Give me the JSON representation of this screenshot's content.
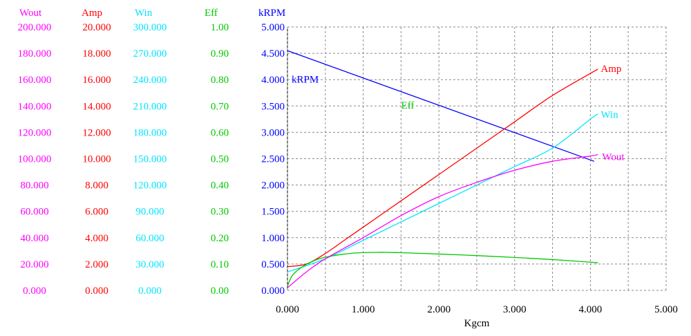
{
  "chart_data": {
    "type": "line",
    "title": "",
    "xlabel": "Kgcm",
    "xlim": [
      0,
      5
    ],
    "x_ticks": [
      "0.000",
      "1.000",
      "2.000",
      "3.000",
      "4.000",
      "5.000"
    ],
    "grid": true,
    "axes": [
      {
        "name": "Wout",
        "color": "#ff00ff",
        "range": [
          0,
          200
        ],
        "ticks": [
          "0.000",
          "20.000",
          "40.000",
          "60.000",
          "80.000",
          "100.000",
          "120.000",
          "140.000",
          "160.000",
          "180.000",
          "200.000"
        ]
      },
      {
        "name": "Amp",
        "color": "#ff0000",
        "range": [
          0,
          20
        ],
        "ticks": [
          "0.000",
          "2.000",
          "4.000",
          "6.000",
          "8.000",
          "10.000",
          "12.000",
          "14.000",
          "16.000",
          "18.000",
          "20.000"
        ]
      },
      {
        "name": "Win",
        "color": "#00e5ff",
        "range": [
          0,
          300
        ],
        "ticks": [
          "0.000",
          "30.000",
          "60.000",
          "90.000",
          "120.000",
          "150.000",
          "180.000",
          "210.000",
          "240.000",
          "270.000",
          "300.000"
        ]
      },
      {
        "name": "Eff",
        "color": "#00c800",
        "range": [
          0,
          1
        ],
        "ticks": [
          "0.00",
          "0.10",
          "0.20",
          "0.30",
          "0.40",
          "0.50",
          "0.60",
          "0.70",
          "0.80",
          "0.90",
          "1.00"
        ]
      },
      {
        "name": "kRPM",
        "color": "#0000ff",
        "range": [
          0,
          5
        ],
        "ticks": [
          "0.000",
          "0.500",
          "1.000",
          "1.500",
          "2.000",
          "2.500",
          "3.000",
          "3.500",
          "4.000",
          "4.500",
          "5.000"
        ]
      }
    ],
    "series": [
      {
        "name": "kRPM",
        "axis": "kRPM",
        "color": "#0000ff",
        "x": [
          0,
          4.05
        ],
        "values": [
          4.55,
          2.45
        ]
      },
      {
        "name": "Amp",
        "axis": "Amp",
        "color": "#ff0000",
        "x": [
          0,
          0.25,
          0.5,
          0.75,
          1.0,
          1.5,
          2.0,
          2.5,
          3.0,
          3.5,
          4.1
        ],
        "values": [
          0.45,
          0.5,
          0.7,
          0.95,
          1.2,
          1.7,
          2.2,
          2.7,
          3.2,
          3.7,
          4.2
        ]
      },
      {
        "name": "Win",
        "axis": "Win",
        "color": "#00e5ff",
        "x": [
          0,
          0.5,
          1.0,
          1.5,
          2.0,
          2.5,
          3.0,
          3.5,
          4.0,
          4.1
        ],
        "values": [
          0.35,
          0.6,
          0.95,
          1.3,
          1.65,
          2.0,
          2.35,
          2.7,
          3.25,
          3.35
        ]
      },
      {
        "name": "Eff",
        "axis": "Eff",
        "color": "#00c800",
        "x": [
          0,
          0.05,
          0.1,
          0.2,
          0.3,
          0.4,
          0.5,
          0.7,
          0.9,
          1.1,
          1.2,
          1.3,
          1.5,
          1.7,
          2.0,
          2.5,
          3.0,
          3.5,
          4.0,
          4.1
        ],
        "values": [
          0.08,
          0.25,
          0.34,
          0.45,
          0.53,
          0.59,
          0.63,
          0.68,
          0.71,
          0.72,
          0.722,
          0.722,
          0.715,
          0.705,
          0.69,
          0.66,
          0.625,
          0.585,
          0.535,
          0.525
        ]
      },
      {
        "name": "Wout",
        "axis": "Wout",
        "color": "#ff00ff",
        "x": [
          0,
          0.25,
          0.5,
          1.0,
          1.5,
          2.0,
          2.5,
          3.0,
          3.5,
          4.0,
          4.1
        ],
        "values": [
          0.05,
          0.35,
          0.6,
          1.0,
          1.42,
          1.78,
          2.05,
          2.28,
          2.45,
          2.55,
          2.58
        ]
      }
    ]
  }
}
